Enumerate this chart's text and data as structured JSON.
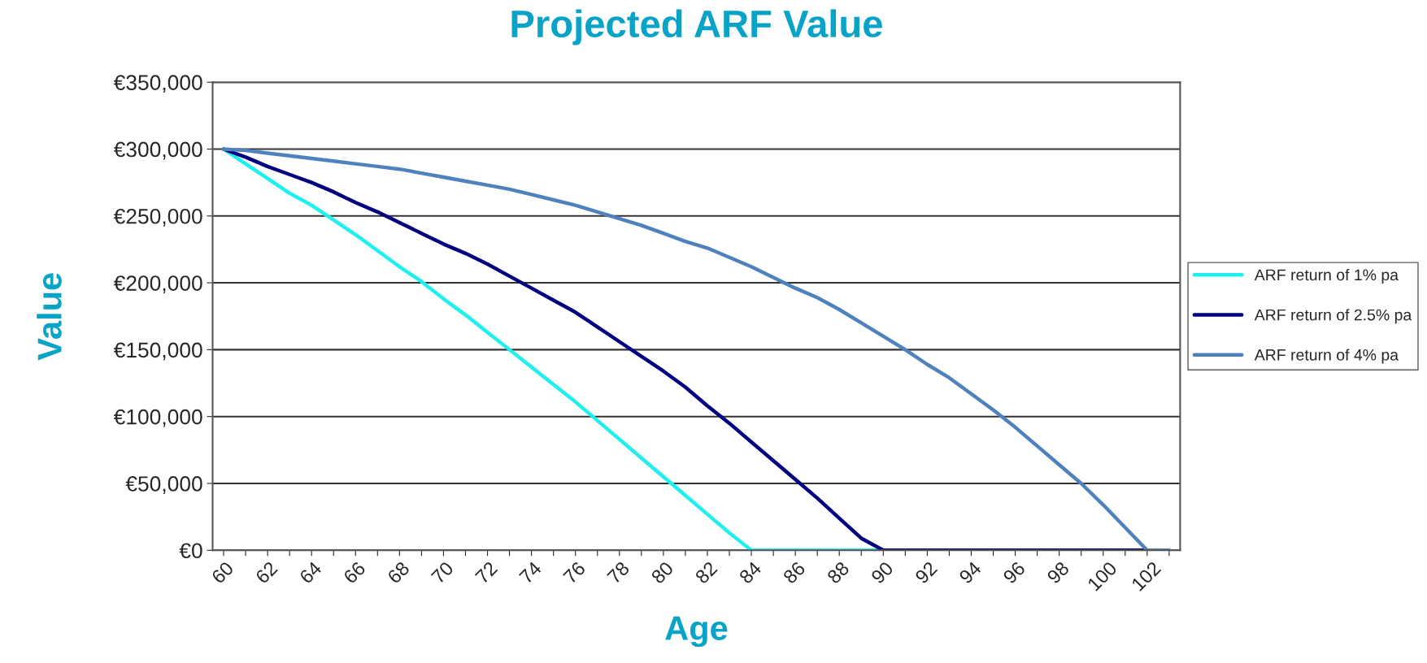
{
  "chart_data": {
    "type": "line",
    "title": "Projected ARF Value",
    "xlabel": "Age",
    "ylabel": "Value",
    "categories": [
      "60",
      null,
      "62",
      null,
      "64",
      null,
      "66",
      null,
      "68",
      null,
      "70",
      null,
      "72",
      null,
      "74",
      null,
      "76",
      null,
      "78",
      null,
      "80",
      null,
      "82",
      null,
      "84",
      null,
      "86",
      null,
      "88",
      null,
      "90",
      null,
      "92",
      null,
      "94",
      null,
      "96",
      null,
      "98",
      null,
      "100",
      null,
      "102",
      null
    ],
    "series": [
      {
        "name": "ARF return of 1% pa",
        "color": "#1ef0f0",
        "values": [
          300000,
          289000,
          278000,
          267000,
          258000,
          247000,
          236000,
          224000,
          212000,
          201000,
          188000,
          176000,
          163000,
          150000,
          137000,
          124000,
          111000,
          97000,
          83000,
          69000,
          55000,
          41000,
          27000,
          13000,
          0,
          0,
          0,
          0,
          0,
          0,
          0,
          null,
          null,
          null,
          null,
          null,
          null,
          null,
          null,
          null,
          null,
          null,
          null,
          null
        ]
      },
      {
        "name": "ARF return of 2.5% pa",
        "color": "#000080",
        "values": [
          300000,
          294000,
          287000,
          281000,
          275000,
          268000,
          260000,
          253000,
          245000,
          237000,
          229000,
          222000,
          214000,
          205000,
          196000,
          187000,
          178000,
          167000,
          156000,
          145000,
          134000,
          122000,
          108000,
          95000,
          81000,
          67000,
          53000,
          39000,
          24000,
          9000,
          0,
          0,
          0,
          0,
          0,
          0,
          0,
          0,
          0,
          0,
          0,
          0,
          0,
          null
        ]
      },
      {
        "name": "ARF return of 4% pa",
        "color": "#4f81bd",
        "values": [
          300000,
          299000,
          297000,
          295000,
          293000,
          291000,
          289000,
          287000,
          285000,
          282000,
          279000,
          276000,
          273000,
          270000,
          266000,
          262000,
          258000,
          253000,
          248000,
          243000,
          237000,
          231000,
          226000,
          219000,
          212000,
          204000,
          196000,
          189000,
          180000,
          170000,
          160000,
          150000,
          139000,
          129000,
          117000,
          105000,
          92000,
          78000,
          64000,
          50000,
          34000,
          17000,
          0,
          0
        ]
      }
    ],
    "ylim": [
      0,
      350000
    ],
    "yticks": [
      {
        "value": 0,
        "label": "€0"
      },
      {
        "value": 50000,
        "label": "€50,000"
      },
      {
        "value": 100000,
        "label": "€100,000"
      },
      {
        "value": 150000,
        "label": "€150,000"
      },
      {
        "value": 200000,
        "label": "€200,000"
      },
      {
        "value": 250000,
        "label": "€250,000"
      },
      {
        "value": 300000,
        "label": "€300,000"
      },
      {
        "value": 350000,
        "label": "€350,000"
      }
    ],
    "grid": "y",
    "legend": "right",
    "marker": "none",
    "line_style": "solid"
  }
}
